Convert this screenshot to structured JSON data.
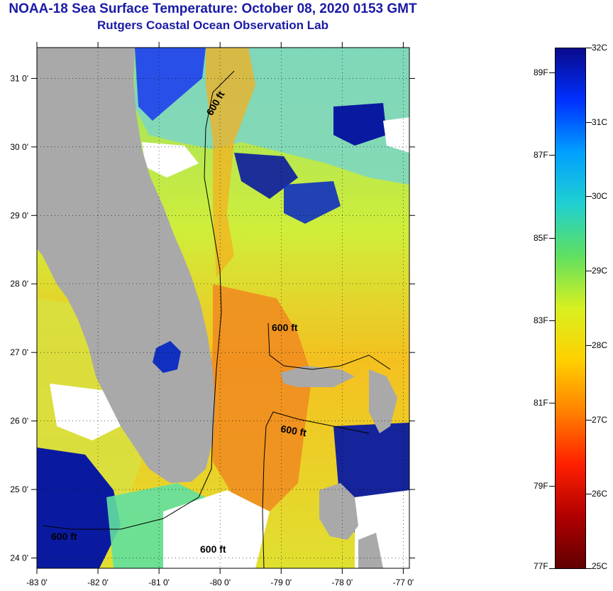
{
  "title": "NOAA-18 Sea Surface Temperature:  October 08, 2020 0153 GMT",
  "subtitle": "Rutgers Coastal Ocean Observation Lab",
  "map": {
    "lat_labels": [
      "31 0'",
      "30 0'",
      "29 0'",
      "28 0'",
      "27 0'",
      "26 0'",
      "25 0'",
      "24 0'"
    ],
    "lon_labels": [
      "-83 0'",
      "-82 0'",
      "-81 0'",
      "-80 0'",
      "-79 0'",
      "-78 0'",
      "-77 0'"
    ],
    "lat_values": [
      31,
      30,
      29,
      28,
      27,
      26,
      25,
      24
    ],
    "lon_values": [
      -83,
      -82,
      -81,
      -80,
      -79,
      -78,
      -77
    ],
    "lat_range": [
      23.85,
      31.45
    ],
    "lon_range": [
      -83,
      -76.9
    ],
    "isobath_labels": [
      "600 ft",
      "600 ft",
      "600 ft",
      "600 ft",
      "600 ft"
    ],
    "colors": {
      "land": "#a9a9a9",
      "cloud": "#ffffff"
    }
  },
  "colorbar": {
    "celsius": [
      "32C",
      "31C",
      "30C",
      "29C",
      "28C",
      "27C",
      "26C",
      "25C"
    ],
    "fahrenheit": [
      "89F",
      "87F",
      "85F",
      "83F",
      "81F",
      "79F",
      "77F"
    ],
    "celsius_values": [
      32,
      31,
      30,
      29,
      28,
      27,
      26,
      25
    ],
    "fahrenheit_values": [
      89,
      87,
      85,
      83,
      81,
      79,
      77
    ],
    "range_c": [
      25,
      32
    ],
    "colors": [
      "#0a0a8c",
      "#0030ff",
      "#00a0ff",
      "#20d0d0",
      "#60e060",
      "#d8f020",
      "#ffd000",
      "#ff8000",
      "#ff2000",
      "#b00000",
      "#600000"
    ]
  }
}
